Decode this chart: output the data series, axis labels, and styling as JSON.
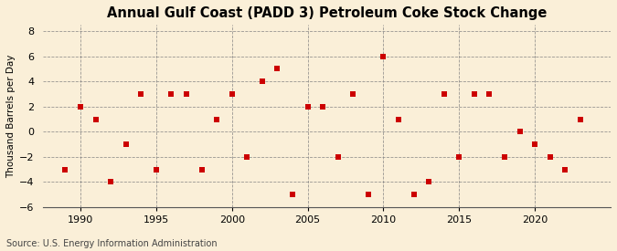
{
  "title": "Annual Gulf Coast (PADD 3) Petroleum Coke Stock Change",
  "ylabel": "Thousand Barrels per Day",
  "source": "Source: U.S. Energy Information Administration",
  "background_color": "#faefd8",
  "marker_color": "#cc0000",
  "years": [
    1989,
    1990,
    1991,
    1992,
    1993,
    1994,
    1995,
    1996,
    1997,
    1998,
    1999,
    2000,
    2001,
    2002,
    2003,
    2004,
    2005,
    2006,
    2007,
    2008,
    2009,
    2010,
    2011,
    2012,
    2013,
    2014,
    2015,
    2016,
    2017,
    2018,
    2019,
    2020,
    2021,
    2022,
    2023
  ],
  "values": [
    -3,
    2,
    1,
    -4,
    -1,
    3,
    -3,
    3,
    3,
    -3,
    1,
    3,
    -2,
    4,
    5,
    -5,
    2,
    2,
    -2,
    3,
    -5,
    6,
    1,
    -5,
    -4,
    3,
    -2,
    3,
    3,
    -2,
    0,
    -1,
    -2,
    -3,
    1
  ],
  "xlim": [
    1987.5,
    2025
  ],
  "ylim": [
    -6,
    8.5
  ],
  "yticks": [
    -6,
    -4,
    -2,
    0,
    2,
    4,
    6,
    8
  ],
  "xticks": [
    1990,
    1995,
    2000,
    2005,
    2010,
    2015,
    2020
  ],
  "title_fontsize": 10.5,
  "ylabel_fontsize": 7.5,
  "tick_fontsize": 8,
  "source_fontsize": 7,
  "marker_size": 15
}
